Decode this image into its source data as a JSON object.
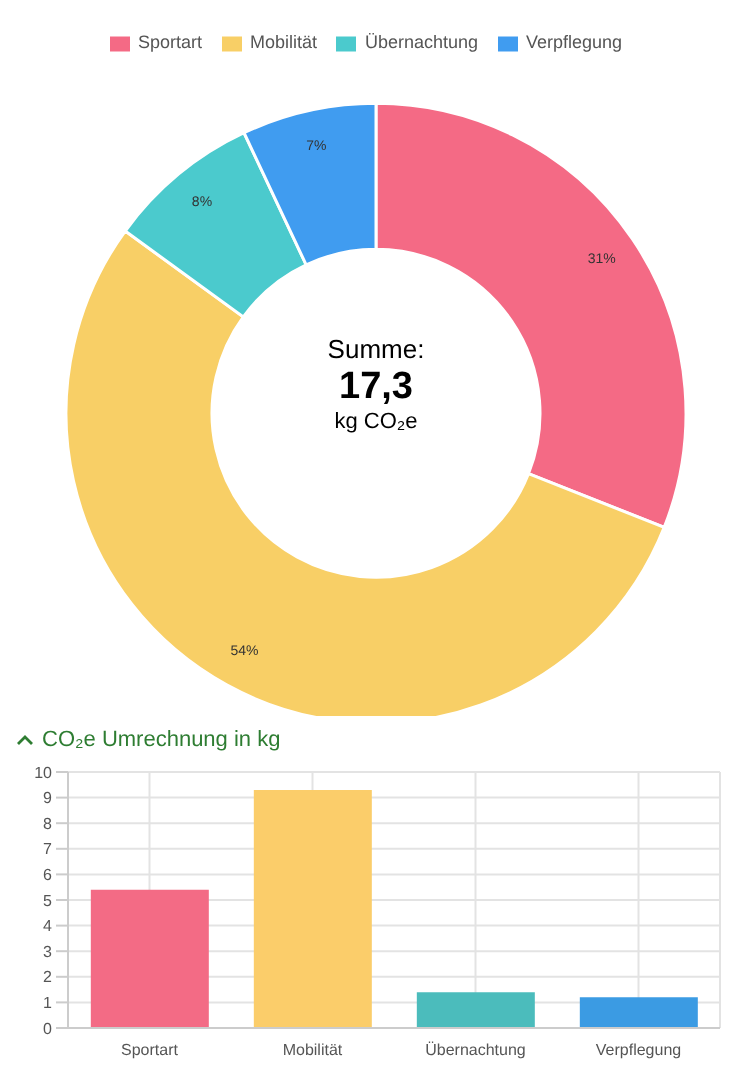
{
  "chart_data": [
    {
      "type": "donut",
      "categories": [
        "Sportart",
        "Mobilität",
        "Übernachtung",
        "Verpflegung"
      ],
      "values": [
        31,
        54,
        8,
        7
      ],
      "colors": [
        "#f46a85",
        "#f8cf66",
        "#4bcacd",
        "#409cf0"
      ],
      "value_labels": [
        "31%",
        "54%",
        "8%",
        "7%"
      ],
      "legend": "top",
      "annotations": [
        "Summe:",
        "17,3",
        "kg CO₂e"
      ]
    },
    {
      "type": "bar",
      "title": "CO₂e Umrechnung in kg",
      "categories": [
        "Sportart",
        "Mobilität",
        "Übernachtung",
        "Verpflegung"
      ],
      "values": [
        5.4,
        9.3,
        1.4,
        1.2
      ],
      "colors": [
        "#f36b85",
        "#fbcd6a",
        "#4bbcbc",
        "#3b9be3"
      ],
      "ylim": [
        0,
        10
      ],
      "yticks": [
        0,
        1,
        2,
        3,
        4,
        5,
        6,
        7,
        8,
        9,
        10
      ],
      "grid": true
    }
  ]
}
